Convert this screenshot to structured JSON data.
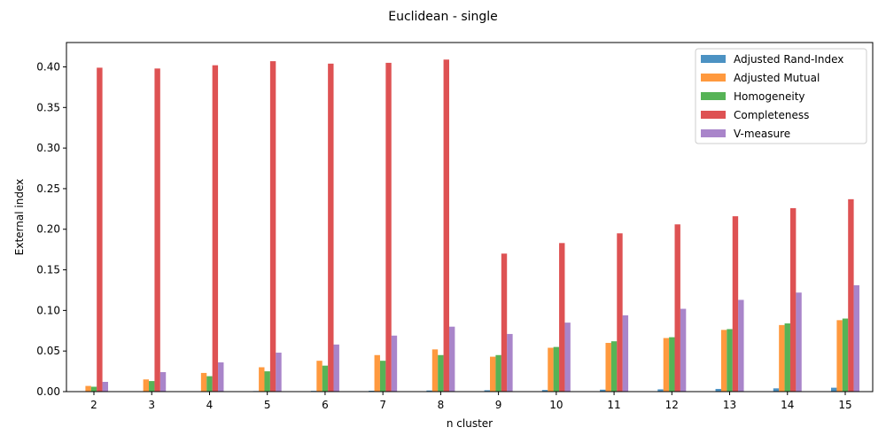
{
  "chart_data": {
    "type": "bar",
    "title": "Euclidean - single",
    "xlabel": "n cluster",
    "ylabel": "External index",
    "categories": [
      "2",
      "3",
      "4",
      "5",
      "6",
      "7",
      "8",
      "9",
      "10",
      "11",
      "12",
      "13",
      "14",
      "15"
    ],
    "ylim": [
      0,
      0.43
    ],
    "yticks": [
      "0.00",
      "0.05",
      "0.10",
      "0.15",
      "0.20",
      "0.25",
      "0.30",
      "0.35",
      "0.40"
    ],
    "grid": false,
    "legend_position": "top-right",
    "series": [
      {
        "name": "Adjusted Rand-Index",
        "color": "#1f77b4",
        "values": [
          0.0002,
          0.0003,
          0.0005,
          0.0007,
          0.0009,
          0.0011,
          0.0014,
          0.0017,
          0.002,
          0.0024,
          0.0028,
          0.0033,
          0.004,
          0.0048
        ]
      },
      {
        "name": "Adjusted Mutual",
        "color": "#ff7f0e",
        "values": [
          0.007,
          0.015,
          0.023,
          0.03,
          0.038,
          0.045,
          0.052,
          0.043,
          0.054,
          0.06,
          0.066,
          0.076,
          0.082,
          0.088
        ]
      },
      {
        "name": "Homogeneity",
        "color": "#2ca02c",
        "values": [
          0.006,
          0.013,
          0.019,
          0.025,
          0.032,
          0.038,
          0.045,
          0.045,
          0.055,
          0.062,
          0.067,
          0.077,
          0.084,
          0.09
        ]
      },
      {
        "name": "Completeness",
        "color": "#d62728",
        "values": [
          0.399,
          0.398,
          0.402,
          0.407,
          0.404,
          0.405,
          0.409,
          0.17,
          0.183,
          0.195,
          0.206,
          0.216,
          0.226,
          0.237
        ]
      },
      {
        "name": "V-measure",
        "color": "#9467bd",
        "values": [
          0.012,
          0.024,
          0.036,
          0.048,
          0.058,
          0.069,
          0.08,
          0.071,
          0.085,
          0.094,
          0.102,
          0.113,
          0.122,
          0.131
        ]
      }
    ]
  }
}
